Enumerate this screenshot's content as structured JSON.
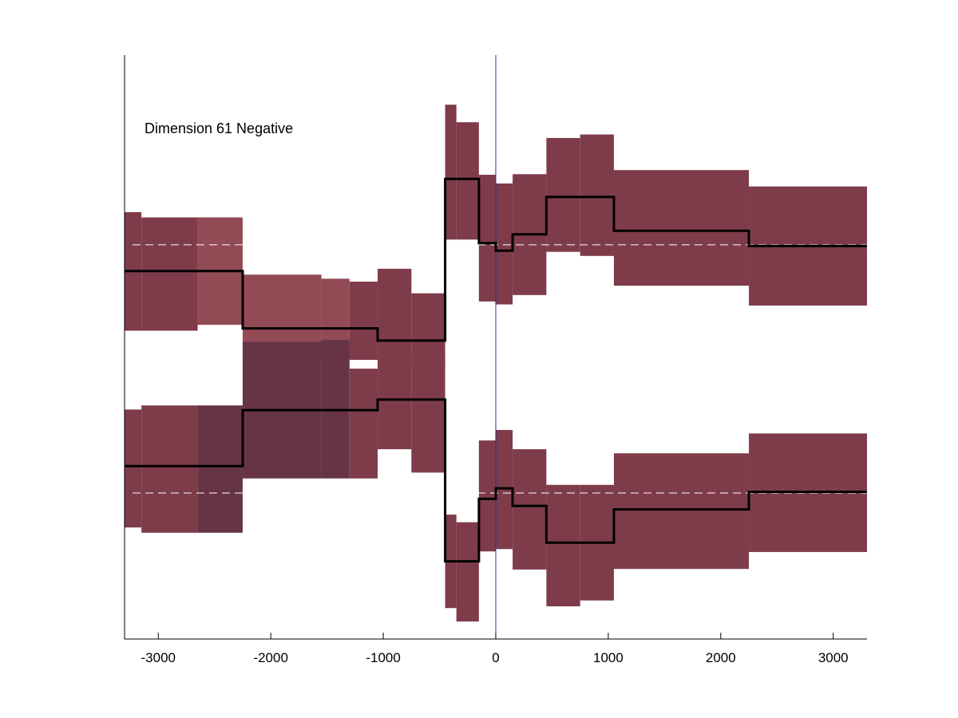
{
  "chart_data": {
    "type": "line",
    "title": "",
    "xlabel": "",
    "ylabel": "",
    "annotation": "Dimension 61 Negative",
    "xlim": [
      -3300,
      3300
    ],
    "ylim": [
      0,
      1
    ],
    "grid": false,
    "x_ticks": [
      -3000,
      -2000,
      -1000,
      0,
      1000,
      2000,
      3000
    ],
    "x_tick_labels": [
      "-3000",
      "-2000",
      "-1000",
      "0",
      "1000",
      "2000",
      "3000"
    ],
    "zero_line_x": 0,
    "reference_lines": [
      0.675,
      0.25
    ],
    "colors": {
      "band": "#7e3c4a",
      "band_light": "#924a55",
      "band_overlap": "#663445",
      "line": "#000000",
      "zero_line": "#2b2bb0",
      "reference_line": "#ffffff"
    },
    "series": [
      {
        "values": [
          {
            "x": -3300,
            "y": 0.63
          },
          {
            "x": -2250,
            "y": 0.63
          },
          {
            "x": -2250,
            "y": 0.532
          },
          {
            "x": -1050,
            "y": 0.532
          },
          {
            "x": -1050,
            "y": 0.511
          },
          {
            "x": -450,
            "y": 0.511
          },
          {
            "x": -450,
            "y": 0.788
          },
          {
            "x": -150,
            "y": 0.788
          },
          {
            "x": -150,
            "y": 0.678
          },
          {
            "x": 0,
            "y": 0.678
          },
          {
            "x": 0,
            "y": 0.665
          },
          {
            "x": 150,
            "y": 0.665
          },
          {
            "x": 150,
            "y": 0.693
          },
          {
            "x": 450,
            "y": 0.693
          },
          {
            "x": 450,
            "y": 0.757
          },
          {
            "x": 1050,
            "y": 0.757
          },
          {
            "x": 1050,
            "y": 0.699
          },
          {
            "x": 2250,
            "y": 0.699
          },
          {
            "x": 2250,
            "y": 0.673
          },
          {
            "x": 3300,
            "y": 0.673
          }
        ],
        "band": [
          {
            "x0": -3300,
            "x1": -3150,
            "low": 0.528,
            "high": 0.731
          },
          {
            "x0": -3150,
            "x1": -2650,
            "low": 0.528,
            "high": 0.722
          },
          {
            "x0": -2650,
            "x1": -2250,
            "low": 0.538,
            "high": 0.722,
            "light": true
          },
          {
            "x0": -2250,
            "x1": -1550,
            "low": 0.468,
            "high": 0.624,
            "light": true
          },
          {
            "x0": -1550,
            "x1": -1300,
            "low": 0.478,
            "high": 0.617,
            "light": true
          },
          {
            "x0": -1300,
            "x1": -1050,
            "low": 0.478,
            "high": 0.612
          },
          {
            "x0": -1050,
            "x1": -750,
            "low": 0.468,
            "high": 0.634
          },
          {
            "x0": -750,
            "x1": -450,
            "low": 0.468,
            "high": 0.592
          },
          {
            "x0": -450,
            "x1": -350,
            "low": 0.684,
            "high": 0.915
          },
          {
            "x0": -350,
            "x1": -150,
            "low": 0.684,
            "high": 0.885
          },
          {
            "x0": -150,
            "x1": 0,
            "low": 0.578,
            "high": 0.795
          },
          {
            "x0": 0,
            "x1": 150,
            "low": 0.573,
            "high": 0.78
          },
          {
            "x0": 150,
            "x1": 450,
            "low": 0.589,
            "high": 0.796
          },
          {
            "x0": 450,
            "x1": 750,
            "low": 0.663,
            "high": 0.858
          },
          {
            "x0": 750,
            "x1": 1050,
            "low": 0.656,
            "high": 0.864
          },
          {
            "x0": 1050,
            "x1": 2250,
            "low": 0.605,
            "high": 0.803
          },
          {
            "x0": 2250,
            "x1": 3300,
            "low": 0.571,
            "high": 0.775
          }
        ]
      },
      {
        "values": [
          {
            "x": -3300,
            "y": 0.296
          },
          {
            "x": -2250,
            "y": 0.296
          },
          {
            "x": -2250,
            "y": 0.392
          },
          {
            "x": -1050,
            "y": 0.392
          },
          {
            "x": -1050,
            "y": 0.41
          },
          {
            "x": -450,
            "y": 0.41
          },
          {
            "x": -450,
            "y": 0.133
          },
          {
            "x": -150,
            "y": 0.133
          },
          {
            "x": -150,
            "y": 0.24
          },
          {
            "x": 0,
            "y": 0.24
          },
          {
            "x": 0,
            "y": 0.258
          },
          {
            "x": 150,
            "y": 0.258
          },
          {
            "x": 150,
            "y": 0.228
          },
          {
            "x": 450,
            "y": 0.228
          },
          {
            "x": 450,
            "y": 0.165
          },
          {
            "x": 1050,
            "y": 0.165
          },
          {
            "x": 1050,
            "y": 0.222
          },
          {
            "x": 2250,
            "y": 0.222
          },
          {
            "x": 2250,
            "y": 0.252
          },
          {
            "x": 3300,
            "y": 0.252
          }
        ],
        "band": [
          {
            "x0": -3300,
            "x1": -3150,
            "low": 0.191,
            "high": 0.393
          },
          {
            "x0": -3150,
            "x1": -2650,
            "low": 0.182,
            "high": 0.4
          },
          {
            "x0": -2650,
            "x1": -2250,
            "low": 0.182,
            "high": 0.4,
            "dark": true
          },
          {
            "x0": -2250,
            "x1": -1550,
            "low": 0.275,
            "high": 0.509,
            "dark": true
          },
          {
            "x0": -1550,
            "x1": -1300,
            "low": 0.275,
            "high": 0.512,
            "dark": true
          },
          {
            "x0": -1300,
            "x1": -1050,
            "low": 0.275,
            "high": 0.463
          },
          {
            "x0": -1050,
            "x1": -750,
            "low": 0.325,
            "high": 0.486
          },
          {
            "x0": -750,
            "x1": -450,
            "low": 0.285,
            "high": 0.486
          },
          {
            "x0": -450,
            "x1": -350,
            "low": 0.053,
            "high": 0.213
          },
          {
            "x0": -350,
            "x1": -150,
            "low": 0.03,
            "high": 0.2
          },
          {
            "x0": -150,
            "x1": 0,
            "low": 0.15,
            "high": 0.34
          },
          {
            "x0": 0,
            "x1": 150,
            "low": 0.154,
            "high": 0.358
          },
          {
            "x0": 150,
            "x1": 450,
            "low": 0.119,
            "high": 0.325
          },
          {
            "x0": 450,
            "x1": 750,
            "low": 0.056,
            "high": 0.264
          },
          {
            "x0": 750,
            "x1": 1050,
            "low": 0.066,
            "high": 0.264
          },
          {
            "x0": 1050,
            "x1": 2250,
            "low": 0.12,
            "high": 0.318
          },
          {
            "x0": 2250,
            "x1": 3300,
            "low": 0.149,
            "high": 0.352
          }
        ]
      }
    ]
  }
}
